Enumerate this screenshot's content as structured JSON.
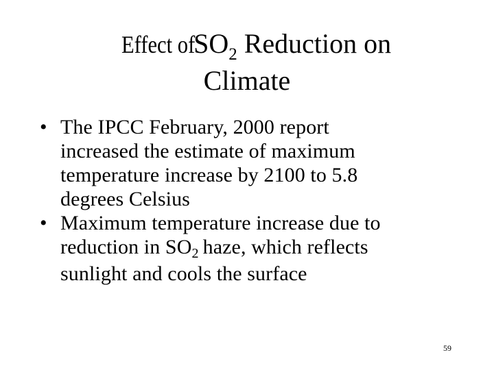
{
  "slide": {
    "title": {
      "line1_part1": "Effect of ",
      "line1_so": "SO",
      "line1_sub": "2",
      "line1_part2": " Reduction on",
      "line2": "Climate"
    },
    "bullets": [
      {
        "marker": "•",
        "lines": [
          "The IPCC February, 2000 report",
          "increased the estimate of maximum",
          "temperature increase by 2100 to 5.8",
          "degrees Celsius"
        ]
      },
      {
        "marker": "•",
        "line1": "Maximum temperature increase due to",
        "line2_part1": "reduction in SO",
        "line2_sub": "2",
        "line2_part2": "haze, which reflects",
        "line3": "sunlight and cools the surface"
      }
    ],
    "page_number": "59"
  }
}
